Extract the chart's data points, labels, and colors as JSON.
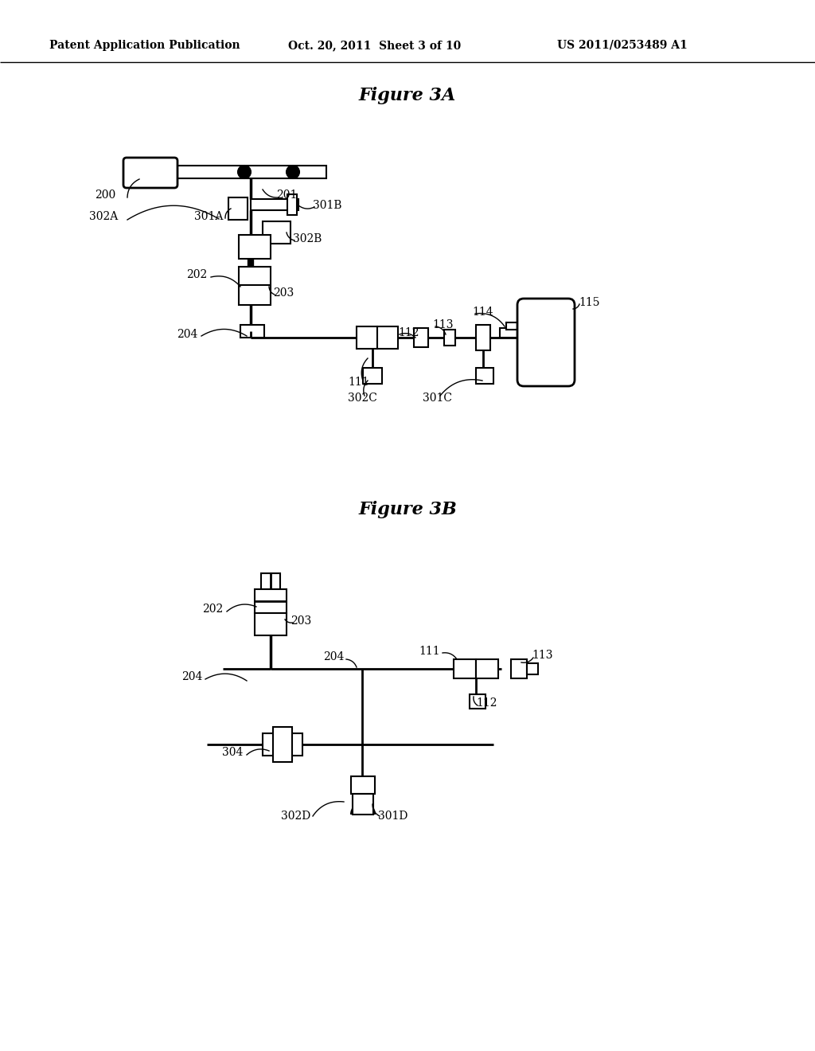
{
  "bg_color": "#ffffff",
  "header_left": "Patent Application Publication",
  "header_mid": "Oct. 20, 2011  Sheet 3 of 10",
  "header_right": "US 2011/0253489 A1",
  "fig3a_title": "Figure 3A",
  "fig3b_title": "Figure 3B"
}
